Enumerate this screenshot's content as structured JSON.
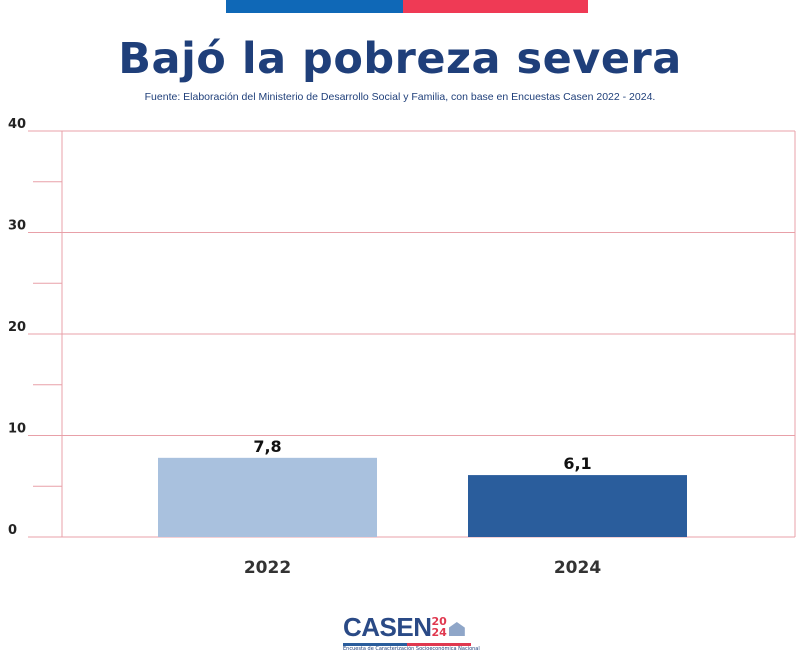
{
  "header": {
    "flag_colors": [
      "#0f68b7",
      "#ef3a55"
    ]
  },
  "chart_data": {
    "type": "bar",
    "title": "Bajó la pobreza severa",
    "subtitle": "Fuente: Elaboración del Ministerio de Desarrollo Social y Familia, con base en Encuestas Casen 2022 - 2024.",
    "categories": [
      "2022",
      "2024"
    ],
    "values": [
      7.8,
      6.1
    ],
    "data_labels": [
      "7,8",
      "6,1"
    ],
    "bar_colors": [
      "#a9c1de",
      "#2a5d9c"
    ],
    "ylim": [
      0,
      40
    ],
    "yticks": [
      "0",
      "10",
      "20",
      "30",
      "40"
    ],
    "grid": true,
    "xlabel": "",
    "ylabel": ""
  },
  "logo": {
    "word": "CASEN",
    "year_top": "20",
    "year_bottom": "24",
    "tagline": "Encuesta de Caracterización Socioeconómica Nacional"
  }
}
